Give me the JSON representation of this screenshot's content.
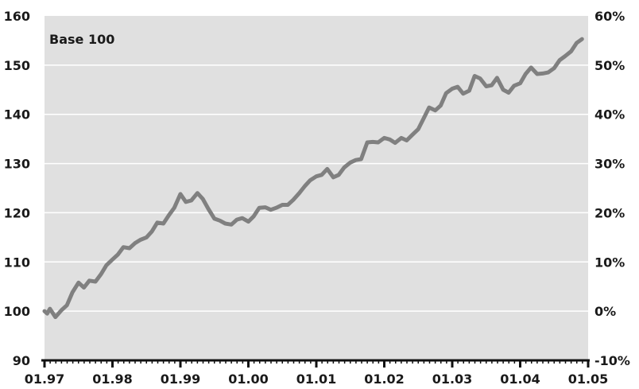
{
  "chart_data": {
    "type": "line",
    "annotation": "Base 100",
    "x_tick_labels": [
      "01.97",
      "01.98",
      "01.99",
      "01.00",
      "01.01",
      "01.02",
      "01.03",
      "01.04",
      "01.05"
    ],
    "y_left_ticks": [
      "160",
      "150",
      "140",
      "130",
      "120",
      "110",
      "100",
      "90"
    ],
    "y_right_ticks": [
      "60%",
      "50%",
      "40%",
      "30%",
      "20%",
      "10%",
      "0%",
      "-10%"
    ],
    "y_left_range": [
      90,
      160
    ],
    "y_right_range": [
      -10,
      60
    ],
    "x_range": [
      1997.0,
      2005.0
    ],
    "grid": true,
    "series": [
      {
        "x": [
          1997.0,
          1997.04,
          1997.08,
          1997.16,
          1997.25,
          1997.33,
          1997.41,
          1997.5,
          1997.58,
          1997.66,
          1997.75,
          1997.83,
          1997.91,
          1998.0,
          1998.08,
          1998.16,
          1998.25,
          1998.33,
          1998.41,
          1998.5,
          1998.58,
          1998.66,
          1998.75,
          1998.83,
          1998.91,
          1999.0,
          1999.08,
          1999.16,
          1999.25,
          1999.33,
          1999.41,
          1999.5,
          1999.58,
          1999.66,
          1999.75,
          1999.83,
          1999.91,
          2000.0,
          2000.08,
          2000.16,
          2000.25,
          2000.33,
          2000.41,
          2000.5,
          2000.58,
          2000.66,
          2000.75,
          2000.83,
          2000.91,
          2001.0,
          2001.08,
          2001.16,
          2001.25,
          2001.33,
          2001.41,
          2001.5,
          2001.58,
          2001.66,
          2001.75,
          2001.83,
          2001.91,
          2002.0,
          2002.08,
          2002.16,
          2002.25,
          2002.33,
          2002.41,
          2002.5,
          2002.58,
          2002.66,
          2002.75,
          2002.83,
          2002.91,
          2003.0,
          2003.08,
          2003.16,
          2003.25,
          2003.33,
          2003.41,
          2003.5,
          2003.58,
          2003.66,
          2003.75,
          2003.83,
          2003.91,
          2004.0,
          2004.08,
          2004.16,
          2004.25,
          2004.33,
          2004.41,
          2004.5,
          2004.58,
          2004.66,
          2004.75,
          2004.83,
          2004.91
        ],
        "values": [
          100,
          99.5,
          100.5,
          98.8,
          100.2,
          101.2,
          103.8,
          105.8,
          104.8,
          106.2,
          106.0,
          107.5,
          109.3,
          110.5,
          111.5,
          113.0,
          112.8,
          113.8,
          114.5,
          115.0,
          116.2,
          118.0,
          117.8,
          119.5,
          121.0,
          123.8,
          122.2,
          122.5,
          124.0,
          122.8,
          120.8,
          118.8,
          118.4,
          117.8,
          117.6,
          118.6,
          118.9,
          118.2,
          119.3,
          121.0,
          121.1,
          120.6,
          121.0,
          121.6,
          121.6,
          122.6,
          124.0,
          125.4,
          126.6,
          127.4,
          127.7,
          128.9,
          127.2,
          127.7,
          129.2,
          130.2,
          130.7,
          130.9,
          134.3,
          134.4,
          134.3,
          135.2,
          134.9,
          134.2,
          135.2,
          134.7,
          135.8,
          137.0,
          139.2,
          141.4,
          140.8,
          141.8,
          144.3,
          145.2,
          145.6,
          144.2,
          144.8,
          147.8,
          147.3,
          145.7,
          145.9,
          147.4,
          145.0,
          144.4,
          145.8,
          146.3,
          148.2,
          149.5,
          148.2,
          148.3,
          148.5,
          149.4,
          151.0,
          151.8,
          152.8,
          154.5,
          155.3
        ]
      }
    ],
    "line_color": "#808080",
    "plot_background": "#e0e0e0",
    "grid_color": "#ffffff"
  }
}
